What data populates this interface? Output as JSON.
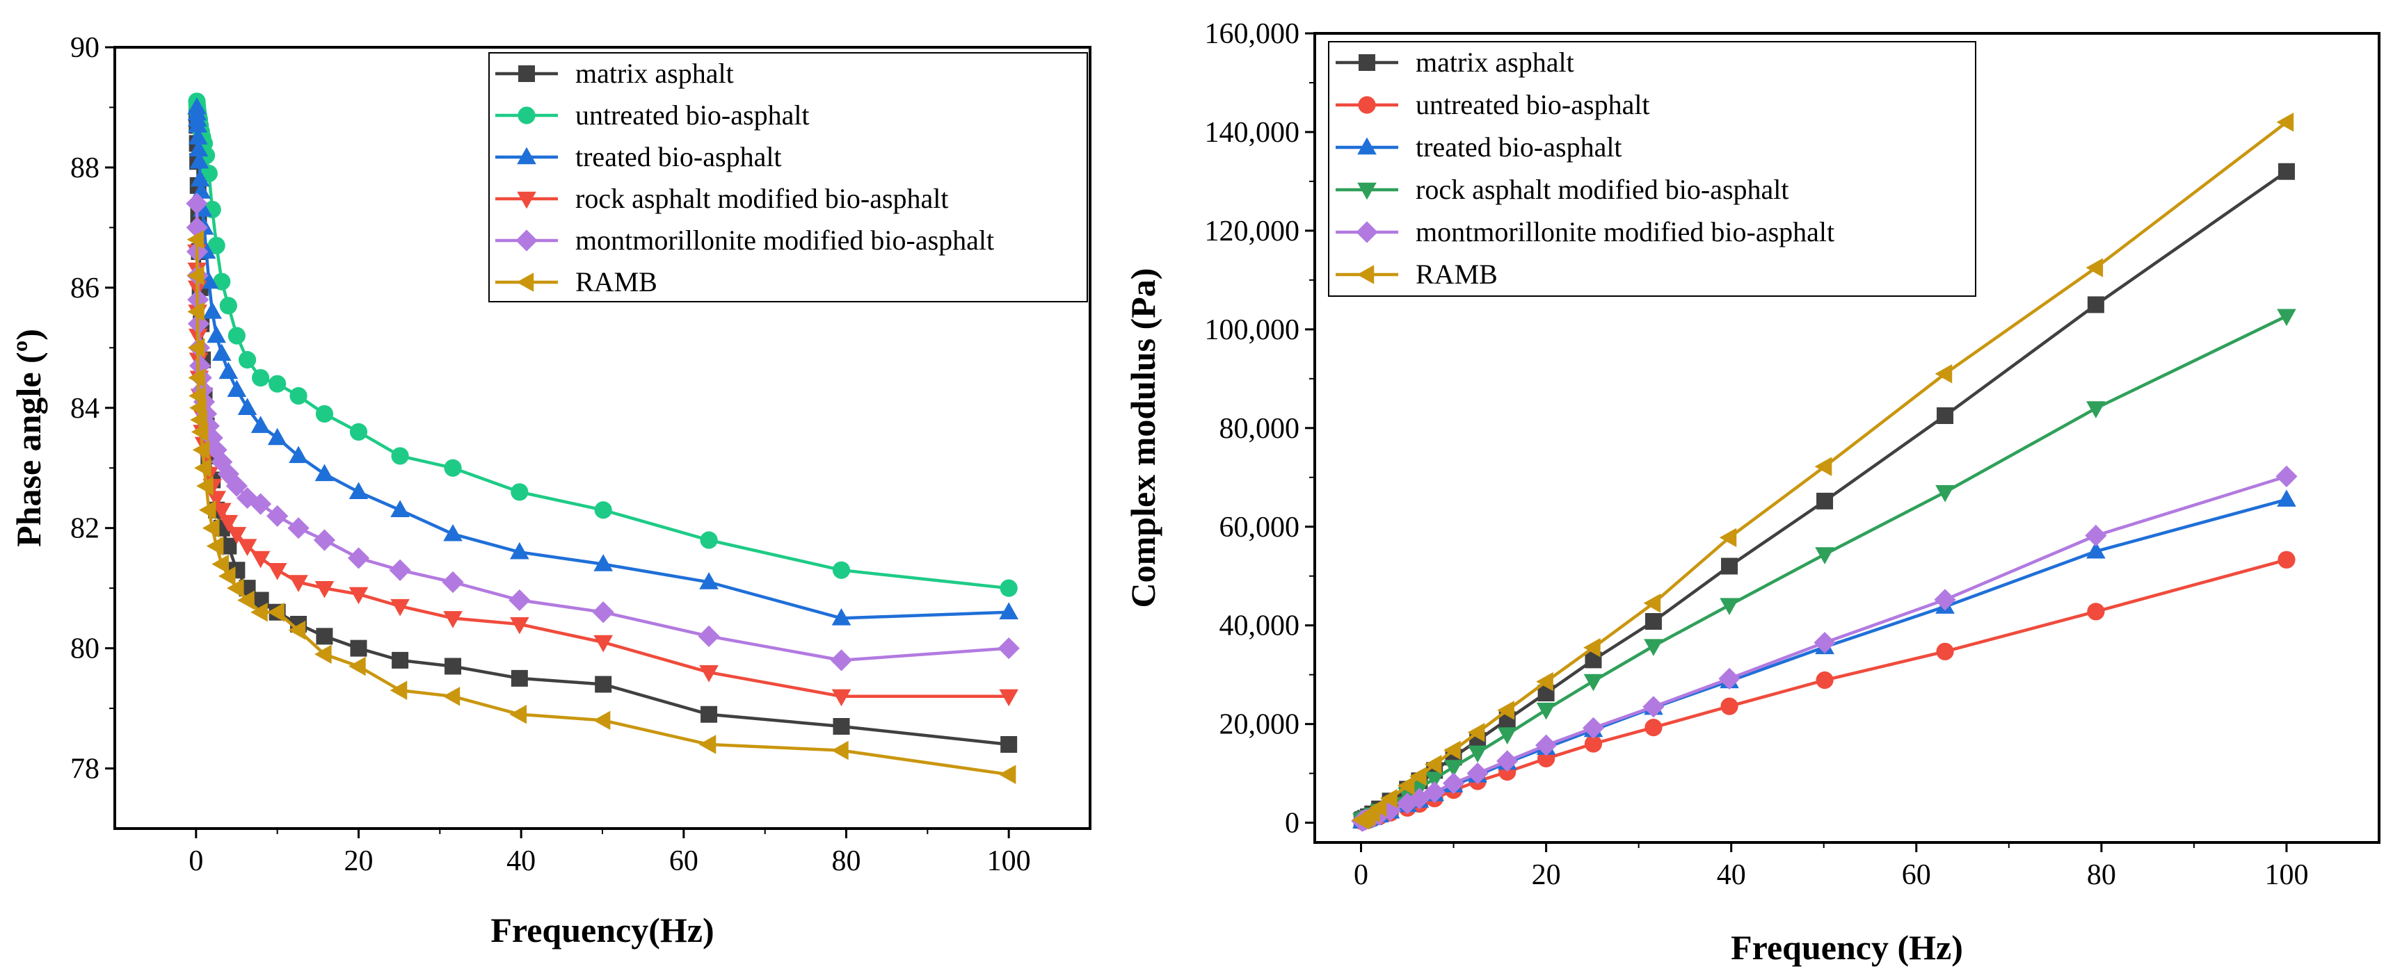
{
  "chart_data": [
    {
      "type": "line",
      "xlabel": "Frequency(Hz)",
      "ylabel": "Phase angle (º)",
      "xlim": [
        -10,
        110
      ],
      "ylim": [
        77,
        90
      ],
      "xticks": [
        0,
        20,
        40,
        60,
        80,
        100
      ],
      "yticks": [
        78,
        80,
        82,
        84,
        86,
        88,
        90
      ],
      "x": [
        0.1,
        0.126,
        0.158,
        0.2,
        0.251,
        0.316,
        0.398,
        0.501,
        0.631,
        0.794,
        1,
        1.26,
        1.58,
        2,
        2.51,
        3.16,
        3.98,
        5.01,
        6.31,
        7.94,
        10,
        12.6,
        15.8,
        20,
        25.1,
        31.6,
        39.8,
        50.1,
        63.1,
        79.4,
        100
      ],
      "series": [
        {
          "name": "matrix asphalt",
          "color": "#404040",
          "marker": "square",
          "values": [
            88.9,
            88.7,
            88.4,
            88.1,
            87.7,
            87.2,
            86.6,
            86.0,
            85.4,
            84.8,
            84.2,
            83.7,
            83.2,
            82.8,
            82.3,
            82.0,
            81.7,
            81.3,
            81.0,
            80.8,
            80.6,
            80.4,
            80.2,
            80.0,
            79.8,
            79.7,
            79.5,
            79.4,
            78.9,
            78.7,
            78.4
          ]
        },
        {
          "name": "untreated bio-asphalt",
          "color": "#1ecb86",
          "marker": "circle",
          "values": [
            89.1,
            89.05,
            89.0,
            88.95,
            88.9,
            88.85,
            88.8,
            88.7,
            88.6,
            88.5,
            88.4,
            88.2,
            87.9,
            87.3,
            86.7,
            86.1,
            85.7,
            85.2,
            84.8,
            84.5,
            84.4,
            84.2,
            83.9,
            83.6,
            83.2,
            83.0,
            82.6,
            82.3,
            81.8,
            81.3,
            81.0
          ]
        },
        {
          "name": "treated bio-asphalt",
          "color": "#1f6fd8",
          "marker": "triangle-up",
          "values": [
            89.0,
            88.9,
            88.8,
            88.7,
            88.5,
            88.3,
            88.1,
            87.8,
            87.6,
            87.3,
            87.0,
            86.6,
            86.1,
            85.6,
            85.2,
            84.9,
            84.6,
            84.3,
            84.0,
            83.7,
            83.5,
            83.2,
            82.9,
            82.6,
            82.3,
            81.9,
            81.6,
            81.4,
            81.1,
            80.5,
            80.6
          ]
        },
        {
          "name": "rock asphalt modified bio-asphalt",
          "color": "#f04b3c",
          "marker": "triangle-down",
          "values": [
            86.6,
            86.3,
            86.0,
            85.6,
            85.2,
            84.8,
            84.5,
            84.2,
            83.9,
            83.6,
            83.4,
            83.2,
            82.9,
            82.7,
            82.5,
            82.3,
            82.1,
            81.9,
            81.7,
            81.5,
            81.3,
            81.1,
            81.0,
            80.9,
            80.7,
            80.5,
            80.4,
            80.1,
            79.6,
            79.2,
            79.2
          ]
        },
        {
          "name": "montmorillonite modified bio-asphalt",
          "color": "#b27ae0",
          "marker": "diamond",
          "values": [
            87.4,
            87.0,
            86.6,
            86.2,
            85.8,
            85.4,
            85.0,
            84.7,
            84.5,
            84.3,
            84.1,
            83.9,
            83.7,
            83.5,
            83.3,
            83.1,
            82.9,
            82.7,
            82.5,
            82.4,
            82.2,
            82.0,
            81.8,
            81.5,
            81.3,
            81.1,
            80.8,
            80.6,
            80.2,
            79.8,
            80.0
          ]
        },
        {
          "name": "RAMB",
          "color": "#c9960e",
          "marker": "triangle-left",
          "values": [
            86.8,
            86.2,
            85.6,
            85.0,
            84.5,
            84.2,
            84.0,
            83.8,
            83.6,
            83.3,
            83.0,
            82.7,
            82.3,
            82.0,
            81.7,
            81.4,
            81.2,
            81.0,
            80.8,
            80.6,
            80.6,
            80.3,
            79.9,
            79.7,
            79.3,
            79.2,
            78.9,
            78.8,
            78.4,
            78.3,
            77.9
          ]
        }
      ]
    },
    {
      "type": "line",
      "xlabel": "Frequency (Hz)",
      "ylabel": "Complex modulus (Pa)",
      "xlim": [
        -5,
        110
      ],
      "ylim": [
        -4000,
        160000
      ],
      "xticks": [
        0,
        20,
        40,
        60,
        80,
        100
      ],
      "yticks": [
        0,
        20000,
        40000,
        60000,
        80000,
        100000,
        120000,
        140000,
        160000
      ],
      "ytick_labels": [
        "0",
        "20,000",
        "40,000",
        "60,000",
        "80,000",
        "100,000",
        "120,000",
        "140,000",
        "160,000"
      ],
      "x": [
        0.1,
        0.2,
        0.316,
        0.5,
        0.794,
        1.26,
        2,
        3.16,
        5.01,
        6.31,
        7.94,
        10,
        12.6,
        15.8,
        20,
        25.1,
        31.6,
        39.8,
        50.1,
        63.1,
        79.4,
        100
      ],
      "series": [
        {
          "name": "matrix asphalt",
          "color": "#404040",
          "marker": "square",
          "values": [
            500,
            600,
            700,
            900,
            1200,
            1800,
            2800,
            4400,
            6800,
            8500,
            10600,
            13300,
            16700,
            20900,
            26300,
            33000,
            40800,
            52000,
            65200,
            82500,
            105000,
            132000
          ]
        },
        {
          "name": "untreated bio-asphalt",
          "color": "#f04b3c",
          "marker": "circle",
          "values": [
            300,
            350,
            400,
            500,
            650,
            900,
            1300,
            2000,
            3000,
            3800,
            4900,
            6600,
            8400,
            10300,
            13000,
            16000,
            19300,
            23600,
            28900,
            34700,
            42800,
            53300
          ]
        },
        {
          "name": "treated bio-asphalt",
          "color": "#1f6fd8",
          "marker": "triangle-up",
          "values": [
            300,
            350,
            450,
            550,
            750,
            1000,
            1500,
            2300,
            3600,
            4500,
            5800,
            7600,
            9600,
            12200,
            15200,
            18800,
            23300,
            28700,
            35600,
            43800,
            55000,
            65500
          ]
        },
        {
          "name": "rock asphalt modified bio-asphalt",
          "color": "#2fa05a",
          "marker": "triangle-down",
          "values": [
            450,
            550,
            650,
            850,
            1100,
            1600,
            2400,
            3700,
            5700,
            7100,
            8900,
            11300,
            14200,
            17900,
            22900,
            28700,
            35800,
            44100,
            54400,
            67000,
            84000,
            102700
          ]
        },
        {
          "name": "montmorillonite modified bio-asphalt",
          "color": "#b27ae0",
          "marker": "diamond",
          "values": [
            350,
            400,
            500,
            600,
            800,
            1100,
            1600,
            2500,
            3900,
            4900,
            6200,
            8000,
            10000,
            12500,
            15700,
            19200,
            23500,
            29200,
            36500,
            45200,
            58200,
            70200
          ]
        },
        {
          "name": "RAMB",
          "color": "#c9960e",
          "marker": "triangle-left",
          "values": [
            550,
            650,
            800,
            1000,
            1300,
            2000,
            3100,
            4900,
            7500,
            9400,
            11800,
            14700,
            18300,
            22800,
            28600,
            35500,
            44500,
            57800,
            72200,
            91000,
            112500,
            142000
          ]
        }
      ]
    }
  ]
}
